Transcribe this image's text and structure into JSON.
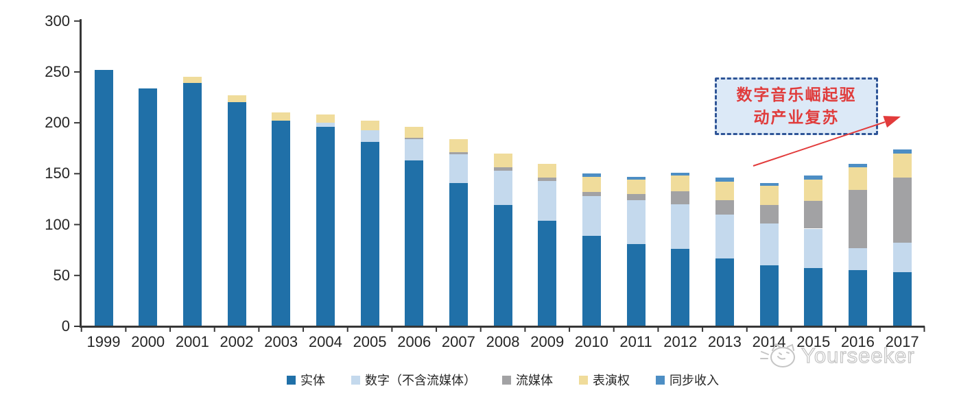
{
  "chart_data": {
    "type": "bar",
    "stacked": true,
    "title": "",
    "xlabel": "",
    "ylabel": "",
    "categories": [
      "1999",
      "2000",
      "2001",
      "2002",
      "2003",
      "2004",
      "2005",
      "2006",
      "2007",
      "2008",
      "2009",
      "2010",
      "2011",
      "2012",
      "2013",
      "2014",
      "2015",
      "2016",
      "2017"
    ],
    "series": [
      {
        "name": "实体",
        "color": "#2070A8",
        "values": [
          252,
          234,
          239,
          220,
          202,
          196,
          181,
          163,
          141,
          119,
          104,
          89,
          81,
          76,
          67,
          60,
          57,
          55,
          53
        ]
      },
      {
        "name": "数字（不含流媒体）",
        "color": "#C4D9ED",
        "values": [
          0,
          0,
          0,
          0,
          0,
          4,
          12,
          21,
          28,
          34,
          39,
          39,
          43,
          44,
          43,
          41,
          39,
          22,
          29
        ]
      },
      {
        "name": "流媒体",
        "color": "#A2A2A4",
        "values": [
          0,
          0,
          0,
          0,
          0,
          0,
          0,
          1,
          2,
          3,
          3,
          4,
          6,
          13,
          14,
          18,
          27,
          57,
          64
        ]
      },
      {
        "name": "表演权",
        "color": "#F0DC9B",
        "values": [
          0,
          0,
          6,
          7,
          8,
          8,
          9,
          11,
          13,
          14,
          14,
          15,
          14,
          15,
          18,
          19,
          21,
          22,
          24
        ]
      },
      {
        "name": "同步收入",
        "color": "#4D8EC4",
        "values": [
          0,
          0,
          0,
          0,
          0,
          0,
          0,
          0,
          0,
          0,
          0,
          3,
          3,
          3,
          4,
          3,
          4,
          4,
          4
        ]
      }
    ],
    "ylim": [
      0,
      300
    ],
    "yticks": [
      0,
      50,
      100,
      150,
      200,
      250,
      300
    ],
    "grid": false,
    "legend_position": "bottom"
  },
  "annotation": {
    "line1": "数字音乐崛起驱",
    "line2": "动产业复苏",
    "text_color": "#E03C3C",
    "border_color": "#2F5597",
    "fill_color": "#DCE9F7",
    "arrow_color": "#E23B3B"
  },
  "watermark": {
    "text": "Yourseeker",
    "color": "#C5C5C5",
    "icon": "cat-logo-icon"
  }
}
